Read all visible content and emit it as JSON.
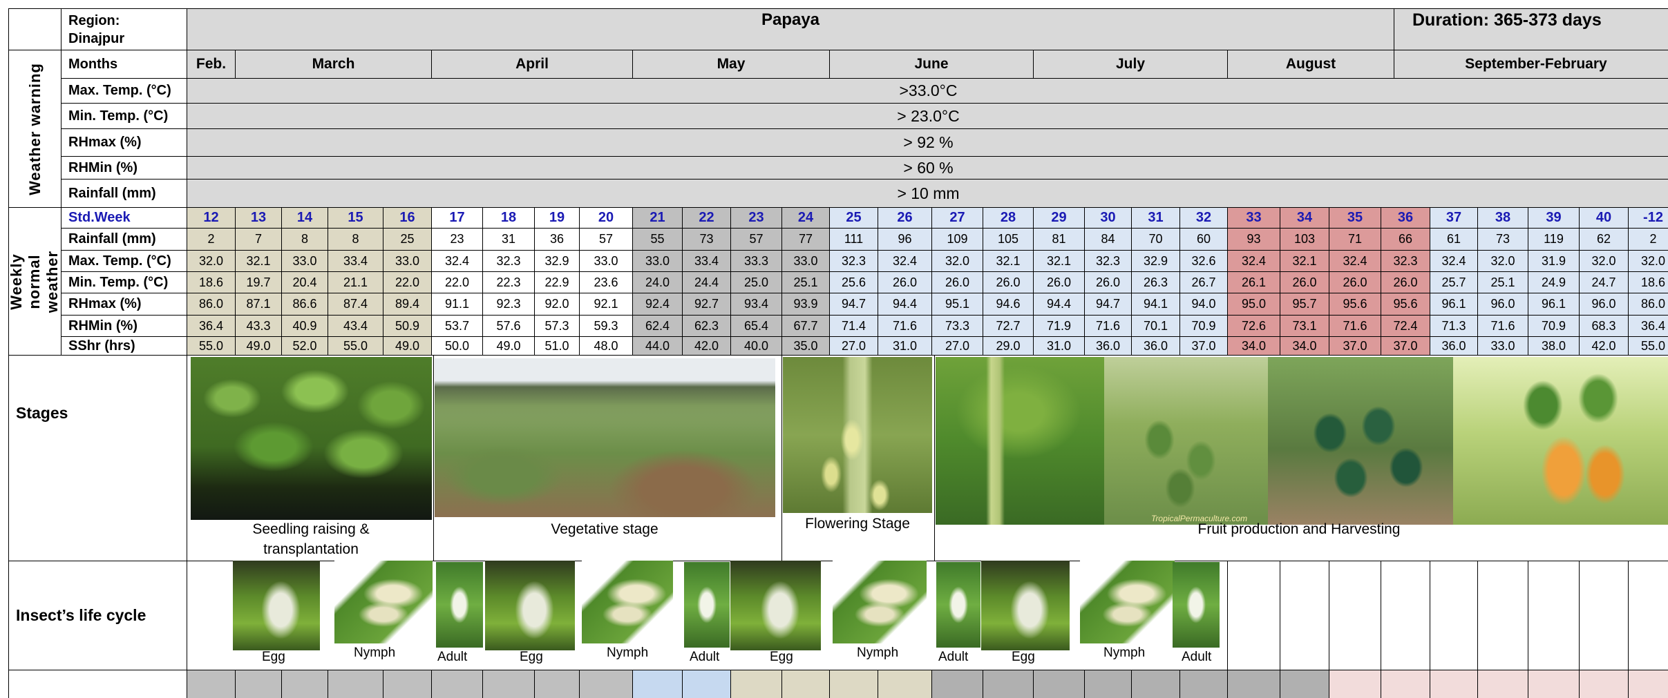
{
  "header": {
    "region_label": "Region:",
    "region_value": "Dinajpur",
    "crop": "Papaya",
    "duration": "Duration: 365-373 days"
  },
  "months": [
    "Feb.",
    "March",
    "April",
    "May",
    "June",
    "July",
    "August",
    "September-February"
  ],
  "weather_warning": {
    "section_label": "Weather  warning",
    "rows": [
      {
        "label": "Max. Temp. (°C)",
        "value": ">33.0°C"
      },
      {
        "label": "Min. Temp. (°C)",
        "value": "> 23.0°C"
      },
      {
        "label": "RHmax (%)",
        "value": "> 92 %"
      },
      {
        "label": "RHMin (%)",
        "value": "> 60 %"
      },
      {
        "label": "Rainfall (mm)",
        "value": "> 10 mm"
      }
    ]
  },
  "weekly_normal": {
    "section_label": "Weekly normal weather",
    "std_week_label": "Std.Week",
    "std_weeks": [
      "12",
      "13",
      "14",
      "15",
      "16",
      "17",
      "18",
      "19",
      "20",
      "21",
      "22",
      "23",
      "24",
      "25",
      "26",
      "27",
      "28",
      "29",
      "30",
      "31",
      "32",
      "33",
      "34",
      "35",
      "36",
      "37",
      "38",
      "39",
      "40",
      "-12"
    ],
    "rows": [
      {
        "label": "Rainfall (mm)",
        "values": [
          "2",
          "7",
          "8",
          "8",
          "25",
          "23",
          "31",
          "36",
          "57",
          "55",
          "73",
          "57",
          "77",
          "111",
          "96",
          "109",
          "105",
          "81",
          "84",
          "70",
          "60",
          "93",
          "103",
          "71",
          "66",
          "61",
          "73",
          "119",
          "62",
          "2"
        ]
      },
      {
        "label": "Max. Temp. (°C)",
        "values": [
          "32.0",
          "32.1",
          "33.0",
          "33.4",
          "33.0",
          "32.4",
          "32.3",
          "32.9",
          "33.0",
          "33.0",
          "33.4",
          "33.3",
          "33.0",
          "32.3",
          "32.4",
          "32.0",
          "32.1",
          "32.1",
          "32.3",
          "32.9",
          "32.6",
          "32.4",
          "32.1",
          "32.4",
          "32.3",
          "32.4",
          "32.0",
          "31.9",
          "32.0",
          "32.0"
        ]
      },
      {
        "label": "Min. Temp. (°C)",
        "values": [
          "18.6",
          "19.7",
          "20.4",
          "21.1",
          "22.0",
          "22.0",
          "22.3",
          "22.9",
          "23.6",
          "24.0",
          "24.4",
          "25.0",
          "25.1",
          "25.6",
          "26.0",
          "26.0",
          "26.0",
          "26.0",
          "26.0",
          "26.3",
          "26.7",
          "26.1",
          "26.0",
          "26.0",
          "26.0",
          "25.7",
          "25.1",
          "24.9",
          "24.7",
          "18.6"
        ]
      },
      {
        "label": "RHmax (%)",
        "values": [
          "86.0",
          "87.1",
          "86.6",
          "87.4",
          "89.4",
          "91.1",
          "92.3",
          "92.0",
          "92.1",
          "92.4",
          "92.7",
          "93.4",
          "93.9",
          "94.7",
          "94.4",
          "95.1",
          "94.6",
          "94.4",
          "94.7",
          "94.1",
          "94.0",
          "95.0",
          "95.7",
          "95.6",
          "95.6",
          "96.1",
          "96.0",
          "96.1",
          "96.0",
          "86.0"
        ]
      },
      {
        "label": "RHMin (%)",
        "values": [
          "36.4",
          "43.3",
          "40.9",
          "43.4",
          "50.9",
          "53.7",
          "57.6",
          "57.3",
          "59.3",
          "62.4",
          "62.3",
          "65.4",
          "67.7",
          "71.4",
          "71.6",
          "73.3",
          "72.7",
          "71.9",
          "71.6",
          "70.1",
          "70.9",
          "72.6",
          "73.1",
          "71.6",
          "72.4",
          "71.3",
          "71.6",
          "70.9",
          "68.3",
          "36.4"
        ]
      },
      {
        "label": "SShr (hrs)",
        "values": [
          "55.0",
          "49.0",
          "52.0",
          "55.0",
          "49.0",
          "50.0",
          "49.0",
          "51.0",
          "48.0",
          "44.0",
          "42.0",
          "40.0",
          "35.0",
          "27.0",
          "31.0",
          "27.0",
          "29.0",
          "31.0",
          "36.0",
          "36.0",
          "37.0",
          "34.0",
          "34.0",
          "37.0",
          "37.0",
          "36.0",
          "33.0",
          "38.0",
          "42.0",
          "55.0"
        ]
      }
    ]
  },
  "stages": {
    "label": "Stages",
    "items": [
      {
        "caption": "Seedling raising & transplantation"
      },
      {
        "caption": "Vegetative stage"
      },
      {
        "caption": "Flowering Stage"
      },
      {
        "caption": "Fruit production  and Harvesting"
      }
    ],
    "watermark": "TropicalPermaculture.com"
  },
  "insect": {
    "label": "Insect’s life cycle",
    "captions": [
      "Egg",
      "Nymph",
      "Adult",
      "Egg",
      "Nymph",
      "Adult",
      "Egg",
      "Nymph",
      "Adult",
      "Egg",
      "Nymph",
      "Adult"
    ]
  },
  "colors": {
    "header_grey": "#d9d9d9",
    "week_light_blue": "#dbe6f4",
    "beige": "#ddd9c4",
    "dark_grey": "#bfbfbf",
    "salmon": "#dc9a9a",
    "blue_week": "#1a1ab4",
    "pink_row": "#f2dcdb"
  }
}
